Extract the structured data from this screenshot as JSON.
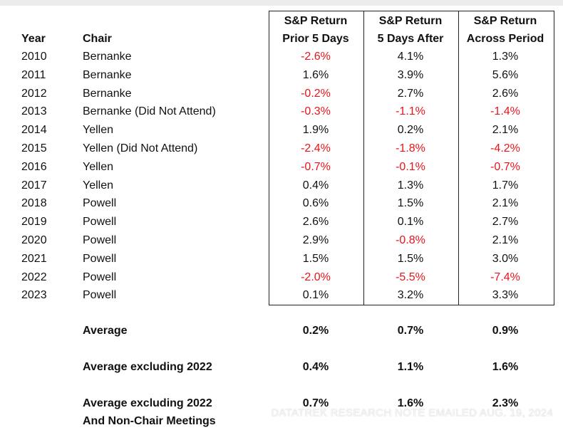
{
  "table": {
    "header": {
      "year": "Year",
      "chair": "Chair",
      "columns": [
        [
          "S&P Return",
          "Prior 5 Days"
        ],
        [
          "S&P Return",
          "5 Days After"
        ],
        [
          "S&P Return",
          "Across Period"
        ]
      ]
    },
    "rows": [
      [
        "2010",
        "Bernanke",
        "-2.6%",
        "4.1%",
        "1.3%"
      ],
      [
        "2011",
        "Bernanke",
        "1.6%",
        "3.9%",
        "5.6%"
      ],
      [
        "2012",
        "Bernanke",
        "-0.2%",
        "2.7%",
        "2.6%"
      ],
      [
        "2013",
        "Bernanke (Did Not Attend)",
        "-0.3%",
        "-1.1%",
        "-1.4%"
      ],
      [
        "2014",
        "Yellen",
        "1.9%",
        "0.2%",
        "2.1%"
      ],
      [
        "2015",
        "Yellen (Did Not Attend)",
        "-2.4%",
        "-1.8%",
        "-4.2%"
      ],
      [
        "2016",
        "Yellen",
        "-0.7%",
        "-0.1%",
        "-0.7%"
      ],
      [
        "2017",
        "Yellen",
        "0.4%",
        "1.3%",
        "1.7%"
      ],
      [
        "2018",
        "Powell",
        "0.6%",
        "1.5%",
        "2.1%"
      ],
      [
        "2019",
        "Powell",
        "2.6%",
        "0.1%",
        "2.7%"
      ],
      [
        "2020",
        "Powell",
        "2.9%",
        "-0.8%",
        "2.1%"
      ],
      [
        "2021",
        "Powell",
        "1.5%",
        "1.5%",
        "3.0%"
      ],
      [
        "2022",
        "Powell",
        "-2.0%",
        "-5.5%",
        "-7.4%"
      ],
      [
        "2023",
        "Powell",
        "0.1%",
        "3.2%",
        "3.3%"
      ]
    ],
    "summary": [
      {
        "label": [
          "Average"
        ],
        "values": [
          "0.2%",
          "0.7%",
          "0.9%"
        ]
      },
      {
        "label": [
          "Average excluding 2022"
        ],
        "values": [
          "0.4%",
          "1.1%",
          "1.6%"
        ]
      },
      {
        "label": [
          "Average excluding 2022",
          "And Non-Chair Meetings"
        ],
        "values": [
          "0.7%",
          "1.6%",
          "2.3%"
        ]
      }
    ]
  },
  "watermark": "DATATREK RESEARCH NOTE EMAILED AUG. 19, 2024"
}
